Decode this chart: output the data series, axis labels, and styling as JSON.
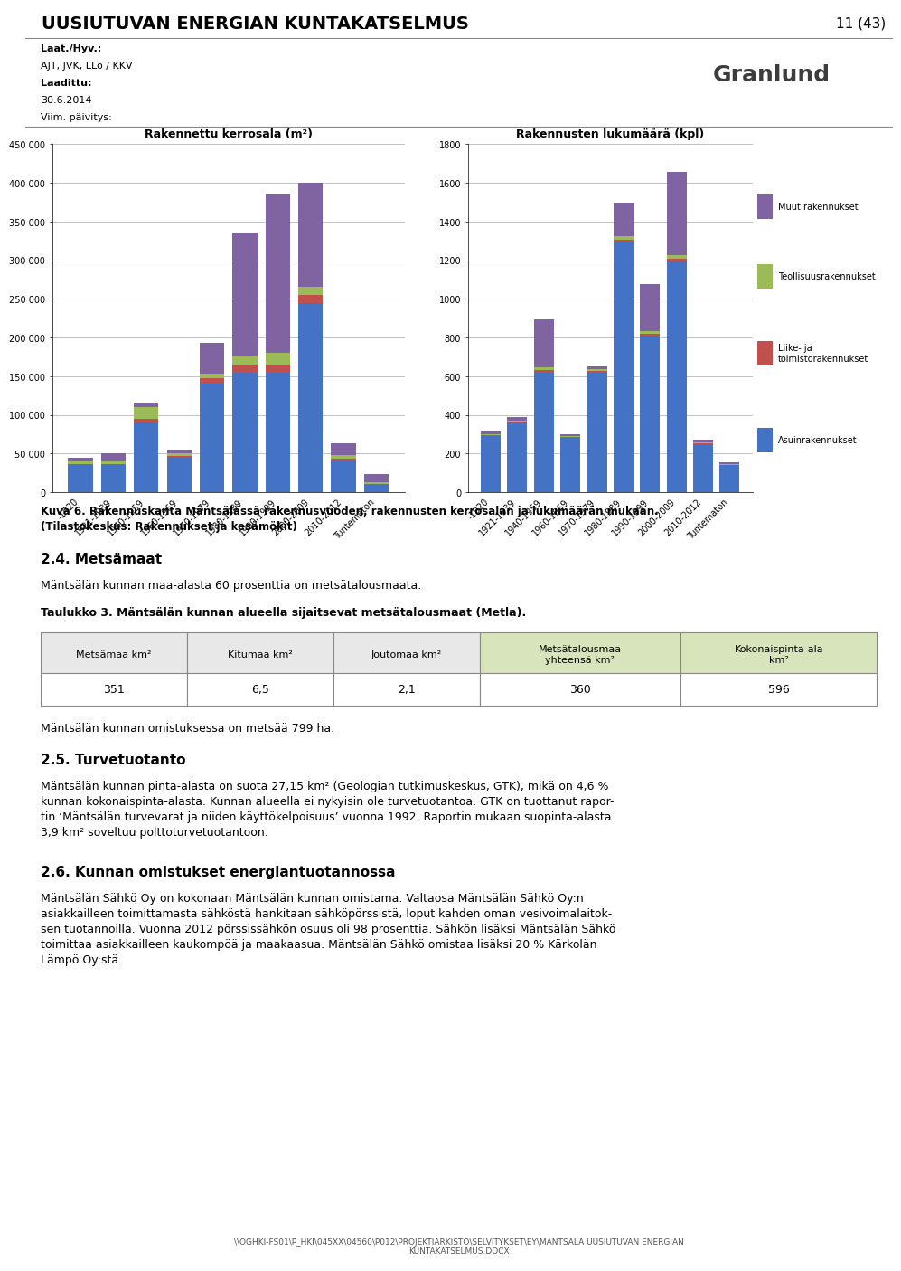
{
  "page_title": "UUSIUTUVAN ENERGIAN KUNTAKATSELMUS",
  "page_number": "11 (43)",
  "meta_lines": [
    "Laat./Hyv.:",
    "AJT, JVK, LLo / KKV",
    "Laadittu:",
    "30.6.2014",
    "Viim. päivitys:"
  ],
  "meta_bold": [
    0,
    2
  ],
  "chart1_title": "Rakennettu kerrosala (m²)",
  "chart2_title": "Rakennusten lukumäärä (kpl)",
  "categories": [
    "-1920",
    "1921-1939",
    "1940-1959",
    "1960-1969",
    "1970-1979",
    "1980-1989",
    "1990-1999",
    "2000-2009",
    "2010-2012",
    "Tuntematon"
  ],
  "chart1_asuinrakennukset": [
    35000,
    35000,
    90000,
    45000,
    140000,
    155000,
    155000,
    245000,
    40000,
    10000
  ],
  "chart1_liike": [
    2000,
    2000,
    5000,
    2000,
    8000,
    10000,
    10000,
    10000,
    3000,
    1000
  ],
  "chart1_teollisuus": [
    3000,
    3000,
    15000,
    3000,
    5000,
    10000,
    15000,
    10000,
    5000,
    2000
  ],
  "chart1_muut": [
    5000,
    10000,
    5000,
    5000,
    40000,
    160000,
    205000,
    135000,
    15000,
    10000
  ],
  "chart2_asuinrakennukset": [
    290,
    360,
    620,
    280,
    620,
    1290,
    810,
    1195,
    250,
    140
  ],
  "chart2_liike": [
    5,
    5,
    10,
    5,
    8,
    15,
    10,
    12,
    4,
    3
  ],
  "chart2_teollisuus": [
    5,
    5,
    15,
    5,
    8,
    20,
    15,
    18,
    4,
    3
  ],
  "chart2_muut": [
    18,
    20,
    250,
    8,
    15,
    170,
    240,
    430,
    12,
    10
  ],
  "color_asuinrakennukset": "#4472C4",
  "color_liike": "#C0504D",
  "color_teollisuus": "#9BBB59",
  "color_muut": "#8064A2",
  "legend_labels": [
    "Muut rakennukset",
    "Teollisuusrakennukset",
    "Liike- ja\ntoimistorakennukset",
    "Asuinrakennukset"
  ],
  "caption_line1": "Kuva 6. Rakennuskanta Mäntsälässä rakennusvuoden, rakennusten kerrosalan ja lukumäärän mukaan.",
  "caption_line2": "(Tilastokeskus: Rakennukset ja kesämökit)",
  "section_24": "2.4. Metsämaat",
  "section_24_text": "Mäntsälän kunnan maa-alasta 60 prosenttia on metsätalousmaata.",
  "table_title": "Taulukko 3. Mäntsälän kunnan alueella sijaitsevat metsätalousmaat (Metla).",
  "table_headers": [
    "Metsämaa km²",
    "Kitumaa km²",
    "Joutomaa km²",
    "Metsätalousmaa\nyhteensä km²",
    "Kokonaispinta-ala\nkm²"
  ],
  "table_values": [
    "351",
    "6,5",
    "2,1",
    "360",
    "596"
  ],
  "table_header_color_normal": "#E8E8E8",
  "table_header_color_green": "#D8E4BC",
  "text_after_table": "Mäntsälän kunnan omistuksessa on metsää 799 ha.",
  "section_25": "2.5. Turvetuotanto",
  "section_25_text": "Mäntsälän kunnan pinta-alasta on suota 27,15 km² (Geologian tutkimuskeskus, GTK), mikä on 4,6 %\nkunnan kokonaispinta-alasta. Kunnan alueella ei nykyisin ole turvetuotantoa. GTK on tuottanut rapor-\ntin ‘Mäntsälän turvevarat ja niiden käyttökelpoisuus’ vuonna 1992. Raportin mukaan suopinta-alasta\n3,9 km² soveltuu polttoturvetuotantoon.",
  "section_26": "2.6. Kunnan omistukset energiantuotannossa",
  "section_26_text": "Mäntsälän Sähkö Oy on kokonaan Mäntsälän kunnan omistama. Valtaosa Mäntsälän Sähkö Oy:n\nasiakkailleen toimittamasta sähköstä hankitaan sähköpörssistä, loput kahden oman vesivoimalaitok-\nsen tuotannoilla. Vuonna 2012 pörssissähkön osuus oli 98 prosenttia. Sähkön lisäksi Mäntsälän Sähkö\ntoimittaa asiakkailleen kaukompöä ja maakaasua. Mäntsälän Sähkö omistaa lisäksi 20 % Kärkolän\nLämpö Oy:stä.",
  "footer_text": "\\\\OGHKI-FS01\\P_HKI\\045XX\\04560\\P012\\PROJEKTIARKISTO\\SELVITYKSET\\EY\\MÄNTSÄLÄ UUSIUTUVAN ENERGIAN\nKUNTAKATSELMUS.DOCX",
  "chart1_ylim": [
    0,
    450000
  ],
  "chart1_yticks": [
    0,
    50000,
    100000,
    150000,
    200000,
    250000,
    300000,
    350000,
    400000,
    450000
  ],
  "chart2_ylim": [
    0,
    1800
  ],
  "chart2_yticks": [
    0,
    200,
    400,
    600,
    800,
    1000,
    1200,
    1400,
    1600,
    1800
  ]
}
